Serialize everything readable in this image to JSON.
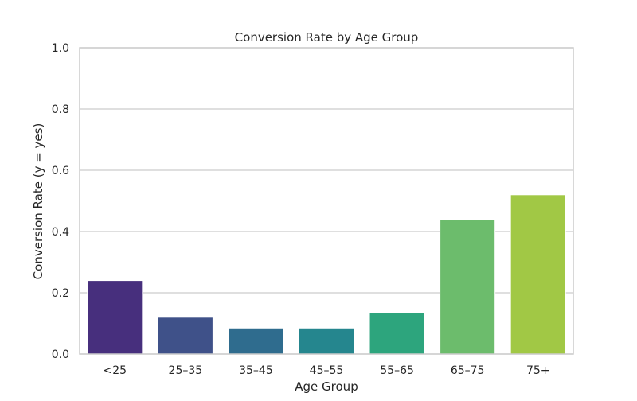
{
  "chart_data": {
    "type": "bar",
    "title": "Conversion Rate by Age Group",
    "xlabel": "Age Group",
    "ylabel": "Conversion Rate (y = yes)",
    "categories": [
      "<25",
      "25–35",
      "35–45",
      "45–55",
      "55–65",
      "65–75",
      "75+"
    ],
    "values": [
      0.24,
      0.12,
      0.085,
      0.085,
      0.135,
      0.44,
      0.52
    ],
    "colors": [
      "#472f7d",
      "#3f5189",
      "#2f6c8e",
      "#25868e",
      "#2da57d",
      "#6cbc6c",
      "#a1c845"
    ],
    "ylim": [
      0,
      1
    ],
    "yticks": [
      "0.0",
      "0.2",
      "0.4",
      "0.6",
      "0.8",
      "1.0"
    ],
    "ytick_values": [
      0,
      0.2,
      0.4,
      0.6,
      0.8,
      1.0
    ],
    "grid": "horizontal",
    "grid_color": "#cccccc",
    "axis_color": "#cccccc",
    "background": "#ffffff"
  }
}
